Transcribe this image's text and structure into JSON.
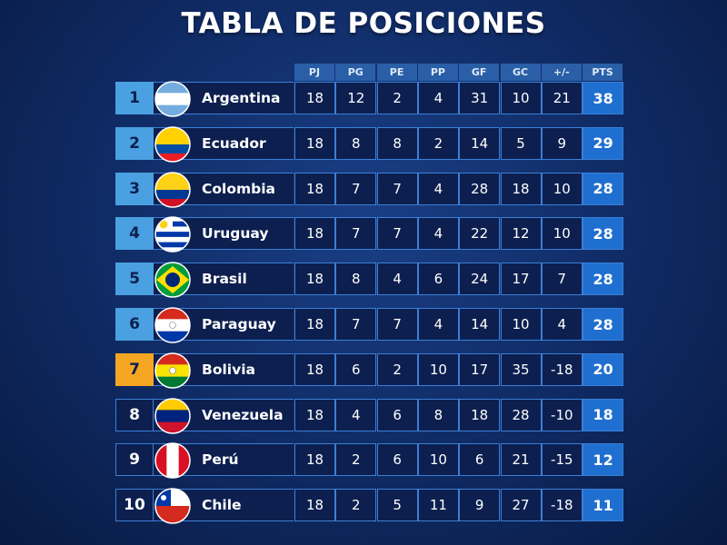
{
  "title": "TABLA DE POSICIONES",
  "table": {
    "columns": [
      "PJ",
      "PG",
      "PE",
      "PP",
      "GF",
      "GC",
      "+/-",
      "PTS"
    ],
    "rows": [
      {
        "position": 1,
        "team": "Argentina",
        "stats": [
          18,
          12,
          2,
          4,
          31,
          10,
          21,
          38
        ]
      },
      {
        "position": 2,
        "team": "Ecuador",
        "stats": [
          18,
          8,
          8,
          2,
          14,
          5,
          9,
          29
        ]
      },
      {
        "position": 3,
        "team": "Colombia",
        "stats": [
          18,
          7,
          7,
          4,
          28,
          18,
          10,
          28
        ]
      },
      {
        "position": 4,
        "team": "Uruguay",
        "stats": [
          18,
          7,
          7,
          4,
          22,
          12,
          10,
          28
        ]
      },
      {
        "position": 5,
        "team": "Brasil",
        "stats": [
          18,
          8,
          4,
          6,
          24,
          17,
          7,
          28
        ]
      },
      {
        "position": 6,
        "team": "Paraguay",
        "stats": [
          18,
          7,
          7,
          4,
          14,
          10,
          4,
          28
        ]
      },
      {
        "position": 7,
        "team": "Bolivia",
        "stats": [
          18,
          6,
          2,
          10,
          17,
          35,
          -18,
          20
        ]
      },
      {
        "position": 8,
        "team": "Venezuela",
        "stats": [
          18,
          4,
          6,
          8,
          18,
          28,
          -10,
          18
        ]
      },
      {
        "position": 9,
        "team": "Perú",
        "stats": [
          18,
          2,
          6,
          10,
          6,
          21,
          -15,
          12
        ]
      },
      {
        "position": 10,
        "team": "Chile",
        "stats": [
          18,
          2,
          5,
          11,
          9,
          27,
          -18,
          11
        ]
      }
    ]
  }
}
